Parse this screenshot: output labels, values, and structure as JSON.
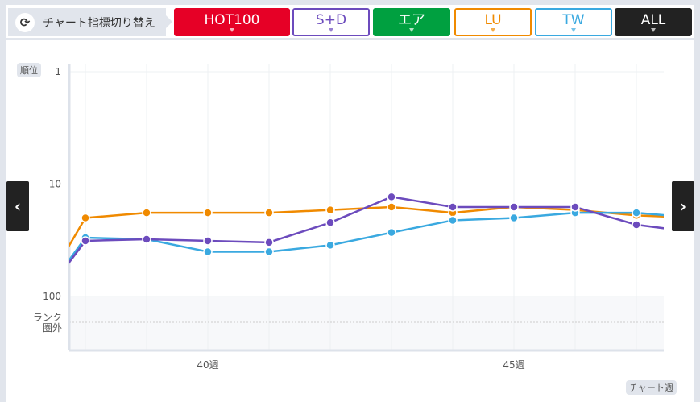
{
  "header": {
    "switch_label": "チャート指標切り替え",
    "switch_icon": "refresh-icon",
    "tabs": [
      {
        "label": "HOT100",
        "color": "#e60026",
        "filled": true
      },
      {
        "label": "S+D",
        "color": "#6c4bbd",
        "filled": false
      },
      {
        "label": "エア",
        "color": "#00a040",
        "filled": true
      },
      {
        "label": "LU",
        "color": "#f08a00",
        "filled": false
      },
      {
        "label": "TW",
        "color": "#3aa9e0",
        "filled": false
      },
      {
        "label": "ALL",
        "color": "#222222",
        "filled": true
      }
    ]
  },
  "nav": {
    "prev": "‹",
    "next": "›"
  },
  "chart_data": {
    "type": "line",
    "ylabel": "順位",
    "xlabel": "チャート週",
    "yscale": "log",
    "ylim": [
      1,
      100
    ],
    "yticks": [
      {
        "v": 1,
        "label": "1"
      },
      {
        "v": 10,
        "label": "10"
      },
      {
        "v": 100,
        "label": "100"
      }
    ],
    "out_label": [
      "ランク",
      "圏外"
    ],
    "xticks": [
      {
        "week": 40,
        "label": "40週"
      },
      {
        "week": 45,
        "label": "45週"
      }
    ],
    "weeks": [
      37,
      38,
      39,
      40,
      41,
      42,
      43,
      44,
      45,
      46,
      47,
      48
    ],
    "series": [
      {
        "name": "LU",
        "color": "#f08a00",
        "values": [
          null,
          20,
          18,
          18,
          18,
          17,
          16,
          18,
          16,
          17,
          19,
          20
        ]
      },
      {
        "name": "TW",
        "color": "#3aa9e0",
        "values": [
          null,
          30,
          31,
          40,
          40,
          35,
          27,
          21,
          20,
          18,
          18,
          20
        ]
      },
      {
        "name": "S+D",
        "color": "#6c4bbd",
        "values": [
          null,
          32,
          31,
          32,
          33,
          22,
          13,
          16,
          16,
          16,
          23,
          27
        ]
      }
    ]
  }
}
